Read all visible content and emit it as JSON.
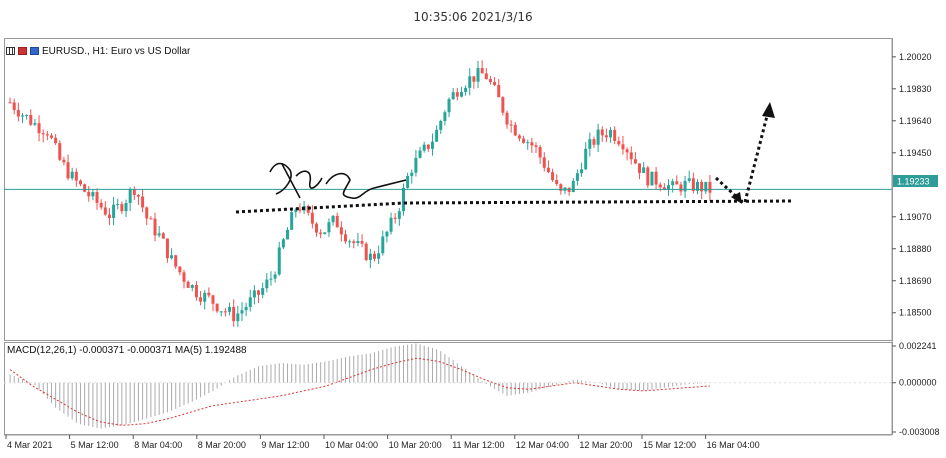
{
  "window": {
    "timestamp": "10:35:06 2021/3/16"
  },
  "chart": {
    "symbol_line": "EURUSD., H1:  Euro vs US Dollar",
    "current_price_label": "1.19233",
    "price_ticks": [
      "1.20020",
      "1.19830",
      "1.19640",
      "1.19450",
      "1.19070",
      "1.18880",
      "1.18690",
      "1.18500"
    ],
    "colors": {
      "bull": "#26a69a",
      "bear": "#ef5350",
      "price_line": "#2e9c99",
      "arrow": "#111111"
    }
  },
  "macd": {
    "header": "MACD(12,26,1) -0.000371 -0.000371 MA(5) 1.192488",
    "ticks": [
      "0.002241",
      "0.000000",
      "-0.003008"
    ]
  },
  "time_axis": [
    "4 Mar 2021",
    "5 Mar 12:00",
    "8 Mar 04:00",
    "8 Mar 20:00",
    "9 Mar 12:00",
    "10 Mar 04:00",
    "10 Mar 20:00",
    "11 Mar 12:00",
    "12 Mar 04:00",
    "12 Mar 20:00",
    "15 Mar 12:00",
    "16 Mar 04:00"
  ],
  "chart_data": {
    "type": "candlestick",
    "symbol": "EURUSD.",
    "timeframe": "H1",
    "ylim": [
      1.1835,
      1.2012
    ],
    "close_path": [
      1.1975,
      1.1968,
      1.1962,
      1.1958,
      1.194,
      1.193,
      1.1922,
      1.1915,
      1.1908,
      1.1915,
      1.1925,
      1.1905,
      1.1895,
      1.188,
      1.187,
      1.1862,
      1.1858,
      1.1852,
      1.1848,
      1.1855,
      1.1862,
      1.1872,
      1.1895,
      1.1915,
      1.1905,
      1.1898,
      1.1905,
      1.1895,
      1.1888,
      1.1882,
      1.1895,
      1.191,
      1.1935,
      1.1945,
      1.1955,
      1.1975,
      1.1985,
      1.199,
      1.1992,
      1.1978,
      1.1962,
      1.1955,
      1.1948,
      1.1935,
      1.192,
      1.1925,
      1.1945,
      1.1955,
      1.1958,
      1.1952,
      1.194,
      1.193,
      1.1928,
      1.1924,
      1.1926,
      1.1925,
      1.1923
    ],
    "macd_hist_path": [
      0.0005,
      0.0,
      -0.0015,
      -0.0025,
      -0.0028,
      -0.0026,
      -0.0022,
      -0.0018,
      -0.0012,
      -0.0005,
      0.0004,
      0.001,
      0.0012,
      0.0011,
      0.0013,
      0.0016,
      0.0018,
      0.0022,
      0.0024,
      0.002,
      0.001,
      0.0,
      -0.0008,
      -0.0006,
      -0.0002,
      0.0002,
      0.0,
      -0.0004,
      -0.0005,
      -0.0003,
      -0.0001,
      0.0
    ],
    "macd_signal_path": [
      0.0008,
      -0.0002,
      -0.001,
      -0.0018,
      -0.0024,
      -0.0026,
      -0.0025,
      -0.0022,
      -0.0018,
      -0.0014,
      -0.0012,
      -0.001,
      -0.0008,
      -0.0005,
      -0.0002,
      0.0003,
      0.0008,
      0.0012,
      0.0015,
      0.0013,
      0.0008,
      0.0002,
      -0.0003,
      -0.0004,
      -0.0002,
      0.0,
      -0.0002,
      -0.0004,
      -0.0005,
      -0.0004,
      -0.0003,
      -0.0002
    ]
  }
}
